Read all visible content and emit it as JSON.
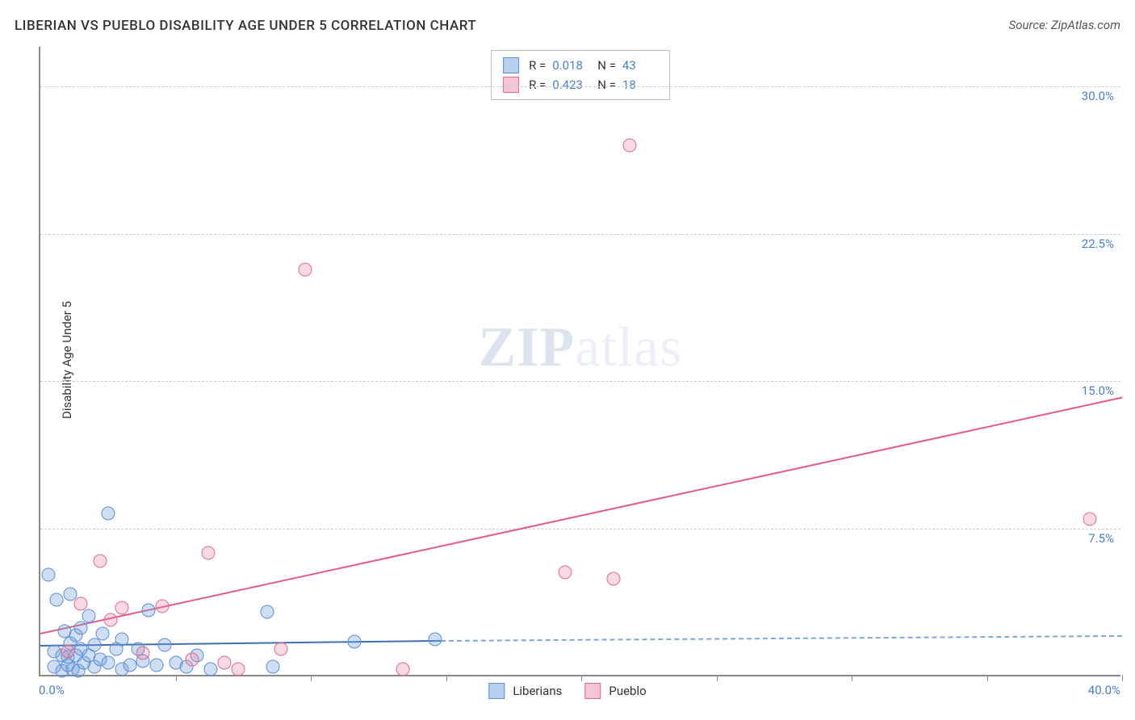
{
  "title": "LIBERIAN VS PUEBLO DISABILITY AGE UNDER 5 CORRELATION CHART",
  "source": "Source: ZipAtlas.com",
  "ylabel": "Disability Age Under 5",
  "watermark_bold": "ZIP",
  "watermark_light": "atlas",
  "chart": {
    "type": "scatter",
    "background_color": "#ffffff",
    "grid_color": "#cccccc",
    "axis_color": "#888888",
    "text_color": "#333333",
    "value_color": "#4a7ec9",
    "xlim": [
      0,
      40
    ],
    "ylim": [
      0,
      32
    ],
    "xtick_step": 5,
    "x_origin_label": "0.0%",
    "x_max_label": "40.0%",
    "yticks": [
      {
        "v": 7.5,
        "label": "7.5%"
      },
      {
        "v": 15.0,
        "label": "15.0%"
      },
      {
        "v": 22.5,
        "label": "22.5%"
      },
      {
        "v": 30.0,
        "label": "30.0%"
      }
    ],
    "series": [
      {
        "name": "Liberians",
        "fill": "rgba(120,160,220,0.35)",
        "stroke": "#5a8fd6",
        "swatch_fill": "#b7d0ee",
        "swatch_stroke": "#5a8fd6",
        "R_label": "R =",
        "R": "0.018",
        "N_label": "N =",
        "N": "43",
        "trend": {
          "x1": 0,
          "y1": 1.6,
          "x2": 14.8,
          "y2": 1.85,
          "solid_color": "#3f6fb3",
          "dash_to_x": 40,
          "dash_to_y": 2.1,
          "dash_color": "#7ea6d8"
        },
        "points": [
          {
            "x": 0.3,
            "y": 5.1
          },
          {
            "x": 0.5,
            "y": 0.4
          },
          {
            "x": 0.5,
            "y": 1.2
          },
          {
            "x": 0.6,
            "y": 3.8
          },
          {
            "x": 0.8,
            "y": 0.2
          },
          {
            "x": 0.8,
            "y": 1.0
          },
          {
            "x": 0.9,
            "y": 2.2
          },
          {
            "x": 1.0,
            "y": 0.5
          },
          {
            "x": 1.0,
            "y": 0.9
          },
          {
            "x": 1.1,
            "y": 1.6
          },
          {
            "x": 1.1,
            "y": 4.1
          },
          {
            "x": 1.2,
            "y": 0.3
          },
          {
            "x": 1.3,
            "y": 1.0
          },
          {
            "x": 1.3,
            "y": 2.0
          },
          {
            "x": 1.4,
            "y": 0.2
          },
          {
            "x": 1.5,
            "y": 1.3
          },
          {
            "x": 1.5,
            "y": 2.4
          },
          {
            "x": 1.6,
            "y": 0.6
          },
          {
            "x": 1.8,
            "y": 1.0
          },
          {
            "x": 1.8,
            "y": 3.0
          },
          {
            "x": 2.0,
            "y": 0.4
          },
          {
            "x": 2.0,
            "y": 1.5
          },
          {
            "x": 2.2,
            "y": 0.8
          },
          {
            "x": 2.3,
            "y": 2.1
          },
          {
            "x": 2.5,
            "y": 0.6
          },
          {
            "x": 2.5,
            "y": 8.2
          },
          {
            "x": 2.8,
            "y": 1.3
          },
          {
            "x": 3.0,
            "y": 0.3
          },
          {
            "x": 3.0,
            "y": 1.8
          },
          {
            "x": 3.3,
            "y": 0.5
          },
          {
            "x": 3.6,
            "y": 1.3
          },
          {
            "x": 3.8,
            "y": 0.7
          },
          {
            "x": 4.0,
            "y": 3.3
          },
          {
            "x": 4.3,
            "y": 0.5
          },
          {
            "x": 4.6,
            "y": 1.5
          },
          {
            "x": 5.0,
            "y": 0.6
          },
          {
            "x": 5.4,
            "y": 0.4
          },
          {
            "x": 5.8,
            "y": 1.0
          },
          {
            "x": 6.3,
            "y": 0.3
          },
          {
            "x": 8.4,
            "y": 3.2
          },
          {
            "x": 8.6,
            "y": 0.4
          },
          {
            "x": 11.6,
            "y": 1.7
          },
          {
            "x": 14.6,
            "y": 1.8
          }
        ]
      },
      {
        "name": "Pueblo",
        "fill": "rgba(230,130,160,0.30)",
        "stroke": "#e06a93",
        "swatch_fill": "#f4c6d5",
        "swatch_stroke": "#e06a93",
        "R_label": "R =",
        "R": "0.423",
        "N_label": "N =",
        "N": "18",
        "trend": {
          "x1": 0,
          "y1": 2.2,
          "x2": 40,
          "y2": 14.2,
          "solid_color": "#e35b86"
        },
        "points": [
          {
            "x": 1.0,
            "y": 1.2
          },
          {
            "x": 1.5,
            "y": 3.6
          },
          {
            "x": 2.2,
            "y": 5.8
          },
          {
            "x": 2.6,
            "y": 2.8
          },
          {
            "x": 3.0,
            "y": 3.4
          },
          {
            "x": 3.8,
            "y": 1.1
          },
          {
            "x": 4.5,
            "y": 3.5
          },
          {
            "x": 5.6,
            "y": 0.8
          },
          {
            "x": 6.2,
            "y": 6.2
          },
          {
            "x": 6.8,
            "y": 0.6
          },
          {
            "x": 7.3,
            "y": 0.3
          },
          {
            "x": 8.9,
            "y": 1.3
          },
          {
            "x": 9.8,
            "y": 20.6
          },
          {
            "x": 13.4,
            "y": 0.3
          },
          {
            "x": 19.4,
            "y": 5.2
          },
          {
            "x": 21.2,
            "y": 4.9
          },
          {
            "x": 21.8,
            "y": 26.9
          },
          {
            "x": 38.8,
            "y": 7.9
          }
        ]
      }
    ]
  }
}
